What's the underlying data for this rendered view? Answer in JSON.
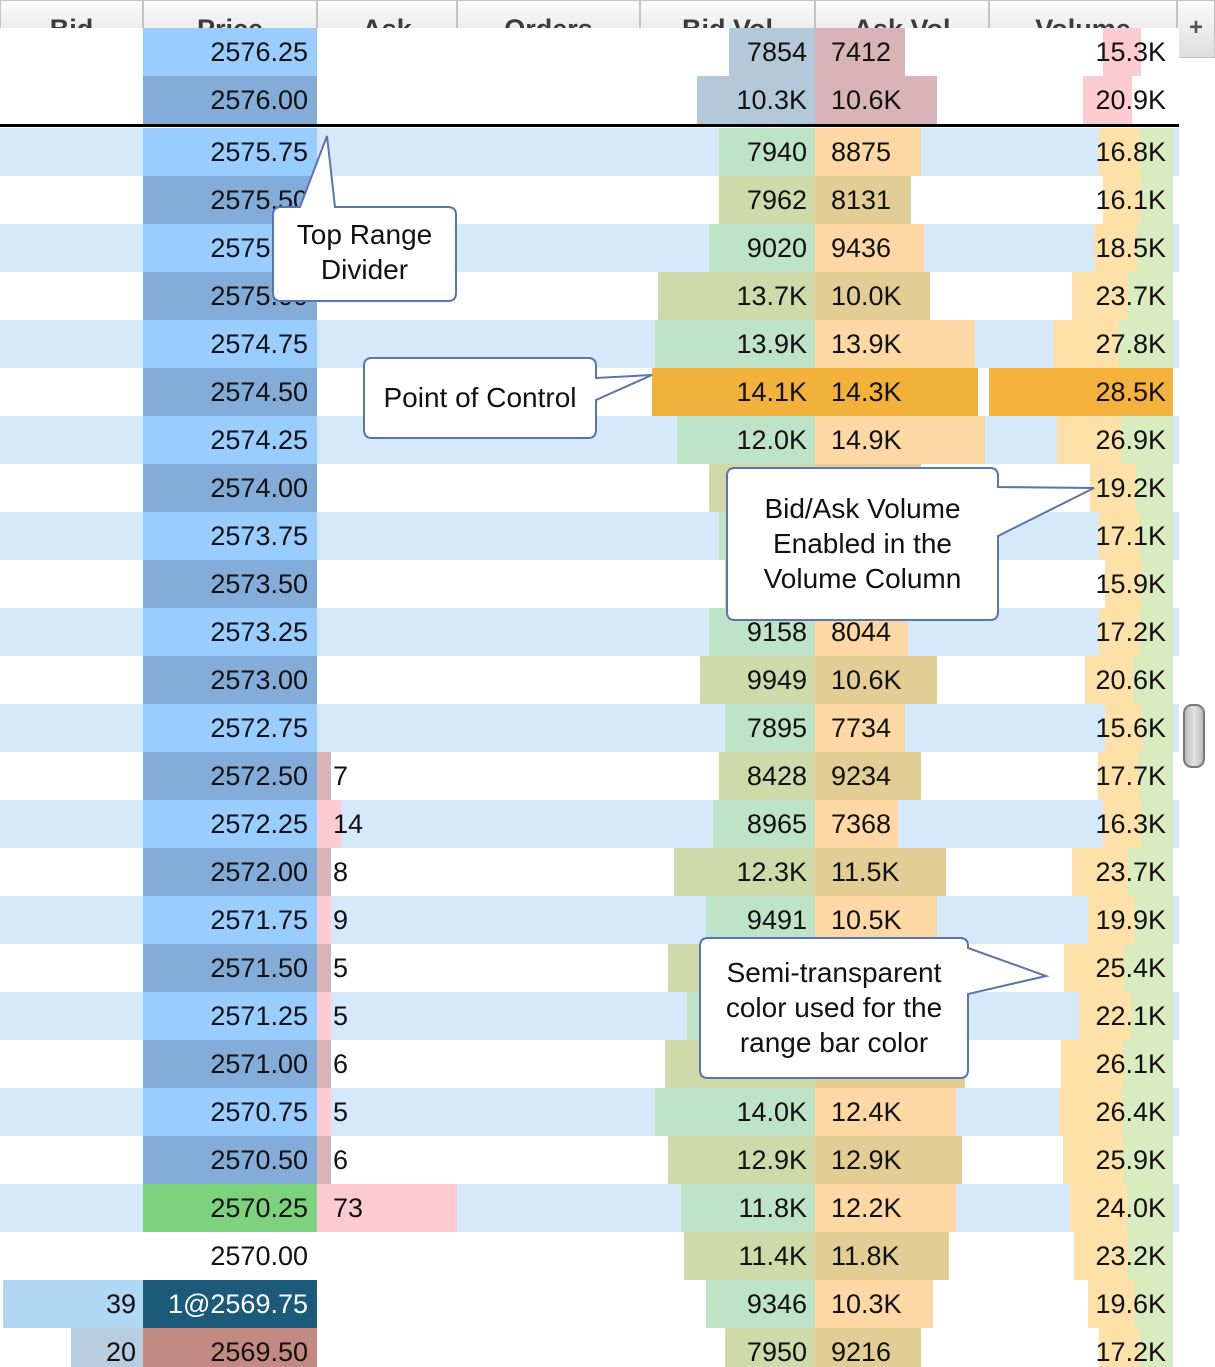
{
  "header": {
    "columns": [
      "Bid",
      "Price",
      "Ask",
      "Orders",
      "Bid Vol",
      "Ask Vol",
      "Volume"
    ],
    "add_column_label": "+"
  },
  "rows": [
    {
      "bid": "",
      "price": "2576.25",
      "ask": "",
      "bid_vol": "7854",
      "ask_vol": "7412",
      "volume": "15.3K",
      "bv_frac": 0.27,
      "av_frac": 0.28,
      "vol_frac": 0.38
    },
    {
      "bid": "",
      "price": "2576.00",
      "ask": "",
      "bid_vol": "10.3K",
      "ask_vol": "10.6K",
      "volume": "20.9K",
      "bv_frac": 0.37,
      "av_frac": 0.38,
      "vol_frac": 0.49
    },
    {
      "bid": "",
      "price": "2575.75",
      "ask": "",
      "bid_vol": "7940",
      "ask_vol": "8875",
      "volume": "16.8K",
      "bv_frac": 0.3,
      "av_frac": 0.33,
      "vol_frac": 0.4
    },
    {
      "bid": "",
      "price": "2575.50",
      "ask": "",
      "bid_vol": "7962",
      "ask_vol": "8131",
      "volume": "16.1K",
      "bv_frac": 0.3,
      "av_frac": 0.3,
      "vol_frac": 0.38
    },
    {
      "bid": "",
      "price": "2575.25",
      "ask": "",
      "bid_vol": "9020",
      "ask_vol": "9436",
      "volume": "18.5K",
      "bv_frac": 0.33,
      "av_frac": 0.34,
      "vol_frac": 0.43
    },
    {
      "bid": "",
      "price": "2575.00",
      "ask": "",
      "bid_vol": "13.7K",
      "ask_vol": "10.0K",
      "volume": "23.7K",
      "bv_frac": 0.49,
      "av_frac": 0.36,
      "vol_frac": 0.55
    },
    {
      "bid": "",
      "price": "2574.75",
      "ask": "",
      "bid_vol": "13.9K",
      "ask_vol": "13.9K",
      "volume": "27.8K",
      "bv_frac": 0.5,
      "av_frac": 0.5,
      "vol_frac": 0.65
    },
    {
      "bid": "",
      "price": "2574.50",
      "ask": "",
      "bid_vol": "14.1K",
      "ask_vol": "14.3K",
      "volume": "28.5K",
      "bv_frac": 0.51,
      "av_frac": 0.51,
      "vol_frac": 1.0,
      "poc": true
    },
    {
      "bid": "",
      "price": "2574.25",
      "ask": "",
      "bid_vol": "12.0K",
      "ask_vol": "14.9K",
      "volume": "26.9K",
      "bv_frac": 0.43,
      "av_frac": 0.53,
      "vol_frac": 0.63
    },
    {
      "bid": "",
      "price": "2574.00",
      "ask": "",
      "bid_vol": "",
      "ask_vol": "",
      "volume": "19.2K",
      "bv_frac": 0.33,
      "av_frac": 0.33,
      "vol_frac": 0.45
    },
    {
      "bid": "",
      "price": "2573.75",
      "ask": "",
      "bid_vol": "",
      "ask_vol": "",
      "volume": "17.1K",
      "bv_frac": 0.3,
      "av_frac": 0.3,
      "vol_frac": 0.4
    },
    {
      "bid": "",
      "price": "2573.50",
      "ask": "",
      "bid_vol": "",
      "ask_vol": "",
      "volume": "15.9K",
      "bv_frac": 0.28,
      "av_frac": 0.28,
      "vol_frac": 0.37
    },
    {
      "bid": "",
      "price": "2573.25",
      "ask": "",
      "bid_vol": "9158",
      "ask_vol": "8044",
      "volume": "17.2K",
      "bv_frac": 0.33,
      "av_frac": 0.29,
      "vol_frac": 0.4
    },
    {
      "bid": "",
      "price": "2573.00",
      "ask": "",
      "bid_vol": "9949",
      "ask_vol": "10.6K",
      "volume": "20.6K",
      "bv_frac": 0.36,
      "av_frac": 0.38,
      "vol_frac": 0.48
    },
    {
      "bid": "",
      "price": "2572.75",
      "ask": "",
      "bid_vol": "7895",
      "ask_vol": "7734",
      "volume": "15.6K",
      "bv_frac": 0.28,
      "av_frac": 0.28,
      "vol_frac": 0.37
    },
    {
      "bid": "",
      "price": "2572.50",
      "ask": "7",
      "bid_vol": "8428",
      "ask_vol": "9234",
      "volume": "17.7K",
      "bv_frac": 0.3,
      "av_frac": 0.33,
      "vol_frac": 0.41
    },
    {
      "bid": "",
      "price": "2572.25",
      "ask": "14",
      "bid_vol": "8965",
      "ask_vol": "7368",
      "volume": "16.3K",
      "bv_frac": 0.32,
      "av_frac": 0.26,
      "vol_frac": 0.38
    },
    {
      "bid": "",
      "price": "2572.00",
      "ask": "8",
      "bid_vol": "12.3K",
      "ask_vol": "11.5K",
      "volume": "23.7K",
      "bv_frac": 0.44,
      "av_frac": 0.41,
      "vol_frac": 0.55
    },
    {
      "bid": "",
      "price": "2571.75",
      "ask": "9",
      "bid_vol": "9491",
      "ask_vol": "10.5K",
      "volume": "19.9K",
      "bv_frac": 0.34,
      "av_frac": 0.38,
      "vol_frac": 0.46
    },
    {
      "bid": "",
      "price": "2571.50",
      "ask": "5",
      "bid_vol": "",
      "ask_vol": "",
      "volume": "25.4K",
      "bv_frac": 0.46,
      "av_frac": 0.46,
      "vol_frac": 0.59
    },
    {
      "bid": "",
      "price": "2571.25",
      "ask": "5",
      "bid_vol": "",
      "ask_vol": "",
      "volume": "22.1K",
      "bv_frac": 0.4,
      "av_frac": 0.4,
      "vol_frac": 0.51
    },
    {
      "bid": "",
      "price": "2571.00",
      "ask": "6",
      "bid_vol": "",
      "ask_vol": "",
      "volume": "26.1K",
      "bv_frac": 0.47,
      "av_frac": 0.47,
      "vol_frac": 0.61
    },
    {
      "bid": "",
      "price": "2570.75",
      "ask": "5",
      "bid_vol": "14.0K",
      "ask_vol": "12.4K",
      "volume": "26.4K",
      "bv_frac": 0.5,
      "av_frac": 0.44,
      "vol_frac": 0.62
    },
    {
      "bid": "",
      "price": "2570.50",
      "ask": "6",
      "bid_vol": "12.9K",
      "ask_vol": "12.9K",
      "volume": "25.9K",
      "bv_frac": 0.46,
      "av_frac": 0.46,
      "vol_frac": 0.6
    },
    {
      "bid": "",
      "price": "2570.25",
      "ask": "73",
      "bid_vol": "11.8K",
      "ask_vol": "12.2K",
      "volume": "24.0K",
      "bv_frac": 0.42,
      "av_frac": 0.44,
      "vol_frac": 0.56,
      "last": true
    },
    {
      "bid": "",
      "price": "2570.00",
      "ask": "",
      "bid_vol": "11.4K",
      "ask_vol": "11.8K",
      "volume": "23.2K",
      "bv_frac": 0.41,
      "av_frac": 0.42,
      "vol_frac": 0.54,
      "range_end": true
    },
    {
      "bid": "39",
      "price": "1@2569.75",
      "ask": "",
      "bid_vol": "9346",
      "ask_vol": "10.3K",
      "volume": "19.6K",
      "bv_frac": 0.34,
      "av_frac": 0.37,
      "vol_frac": 0.46,
      "bid_frac": 0.42,
      "orders_here": true
    },
    {
      "bid": "20",
      "price": "2569.50",
      "ask": "",
      "bid_vol": "7950",
      "ask_vol": "9216",
      "volume": "17.2K",
      "bv_frac": 0.28,
      "av_frac": 0.33,
      "vol_frac": 0.4,
      "bid_frac": 0.22,
      "best_ask_side": true
    }
  ],
  "callouts": {
    "top_range": "Top Range Divider",
    "poc": "Point of Control",
    "bidask": "Bid/Ask Volume Enabled in the Volume Column",
    "semi": "Semi-transparent color used for the range bar color"
  },
  "colors": {
    "price_light": "#99ccff",
    "price_dark": "#84acd8",
    "last_trade": "#7dd27d",
    "order_price": "#1c5a7c",
    "ask_price": "#c28a82",
    "row_stripe": "#d5e9fb",
    "bid_vol": "#bfe3c6",
    "ask_vol": "#fdd8a5",
    "poc": "#f2b13a",
    "ask_depth": "#ffcbd3",
    "bid_depth": "#b0d8f5"
  }
}
